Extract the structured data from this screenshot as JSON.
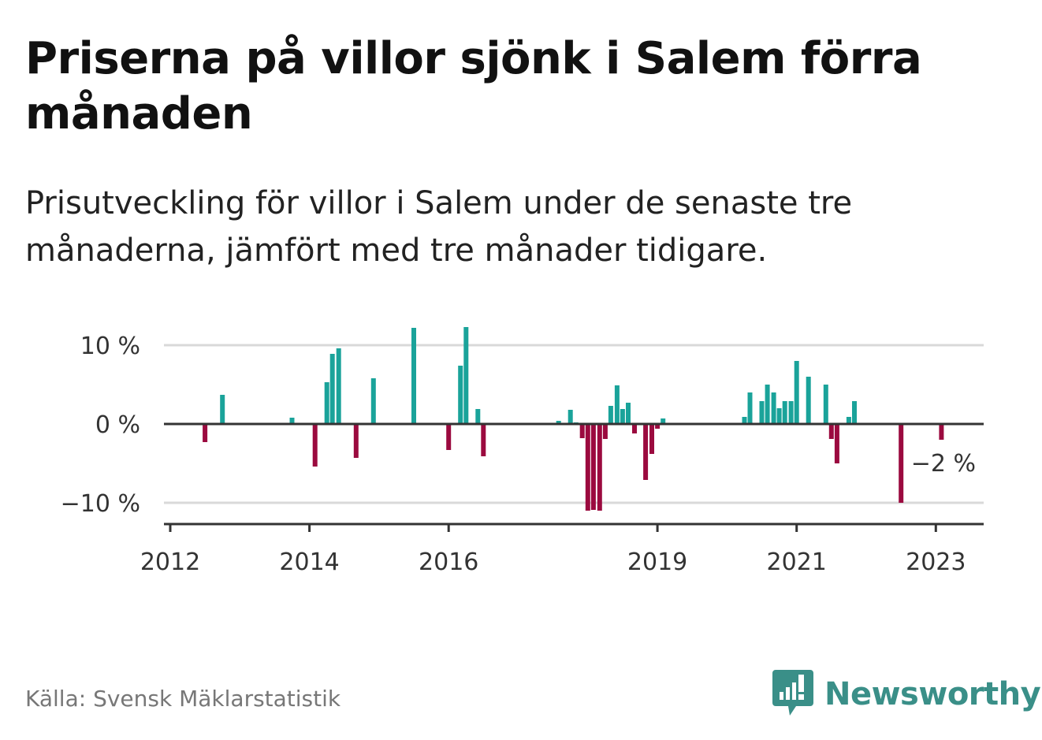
{
  "title": "Priserna på villor sjönk i Salem förra månaden",
  "subtitle": "Prisutveckling för villor i Salem under de senaste tre månaderna, jämfört med tre månader tidigare.",
  "source": "Källa: Svensk Mäklarstatistik",
  "brand": {
    "name": "Newsworthy",
    "icon": "newsworthy-logo-icon"
  },
  "colors": {
    "positive": "#1aa39a",
    "negative": "#9b0a3f",
    "grid": "#d9d9d9",
    "axis": "#333333",
    "brand": "#3a8f88"
  },
  "chart_data": {
    "type": "bar",
    "xlabel": "",
    "ylabel": "",
    "ylim": [
      -12.7,
      12.5
    ],
    "grid": true,
    "yticks": [
      {
        "value": 10,
        "label": "10 %"
      },
      {
        "value": 0,
        "label": "0 %"
      },
      {
        "value": -10,
        "label": "−10 %"
      }
    ],
    "xticks": [
      {
        "value": 2012.0,
        "label": "2012"
      },
      {
        "value": 2014.0,
        "label": "2014"
      },
      {
        "value": 2016.0,
        "label": "2016"
      },
      {
        "value": 2019.0,
        "label": "2019"
      },
      {
        "value": 2021.0,
        "label": "2021"
      },
      {
        "value": 2023.0,
        "label": "2023"
      }
    ],
    "last_value_label": "−2 %",
    "points": [
      {
        "x": 2012.5,
        "y": -2.3
      },
      {
        "x": 2012.75,
        "y": 3.7
      },
      {
        "x": 2013.75,
        "y": 0.8
      },
      {
        "x": 2014.08,
        "y": -5.4
      },
      {
        "x": 2014.25,
        "y": 5.3
      },
      {
        "x": 2014.33,
        "y": 8.9
      },
      {
        "x": 2014.42,
        "y": 9.6
      },
      {
        "x": 2014.67,
        "y": -4.3
      },
      {
        "x": 2014.92,
        "y": 5.8
      },
      {
        "x": 2015.5,
        "y": 12.2
      },
      {
        "x": 2016.0,
        "y": -3.3
      },
      {
        "x": 2016.17,
        "y": 7.4
      },
      {
        "x": 2016.25,
        "y": 12.3
      },
      {
        "x": 2016.42,
        "y": 1.9
      },
      {
        "x": 2016.5,
        "y": -4.1
      },
      {
        "x": 2017.58,
        "y": 0.4
      },
      {
        "x": 2017.75,
        "y": 1.8
      },
      {
        "x": 2017.83,
        "y": 0.2
      },
      {
        "x": 2017.92,
        "y": -1.8
      },
      {
        "x": 2018.0,
        "y": -11.0
      },
      {
        "x": 2018.08,
        "y": -10.9
      },
      {
        "x": 2018.17,
        "y": -11.0
      },
      {
        "x": 2018.25,
        "y": -1.9
      },
      {
        "x": 2018.33,
        "y": 2.3
      },
      {
        "x": 2018.42,
        "y": 4.9
      },
      {
        "x": 2018.5,
        "y": 1.9
      },
      {
        "x": 2018.58,
        "y": 2.7
      },
      {
        "x": 2018.67,
        "y": -1.2
      },
      {
        "x": 2018.83,
        "y": -7.1
      },
      {
        "x": 2018.92,
        "y": -3.8
      },
      {
        "x": 2019.0,
        "y": -0.6
      },
      {
        "x": 2019.08,
        "y": 0.7
      },
      {
        "x": 2020.25,
        "y": 0.9
      },
      {
        "x": 2020.33,
        "y": 4.0
      },
      {
        "x": 2020.5,
        "y": 2.9
      },
      {
        "x": 2020.58,
        "y": 5.0
      },
      {
        "x": 2020.67,
        "y": 4.0
      },
      {
        "x": 2020.75,
        "y": 2.0
      },
      {
        "x": 2020.83,
        "y": 2.9
      },
      {
        "x": 2020.92,
        "y": 2.9
      },
      {
        "x": 2021.0,
        "y": 8.0
      },
      {
        "x": 2021.17,
        "y": 6.0
      },
      {
        "x": 2021.42,
        "y": 5.0
      },
      {
        "x": 2021.5,
        "y": -1.9
      },
      {
        "x": 2021.58,
        "y": -5.0
      },
      {
        "x": 2021.75,
        "y": 0.9
      },
      {
        "x": 2021.83,
        "y": 2.9
      },
      {
        "x": 2022.5,
        "y": -10.0
      },
      {
        "x": 2023.08,
        "y": -2.0
      }
    ]
  }
}
